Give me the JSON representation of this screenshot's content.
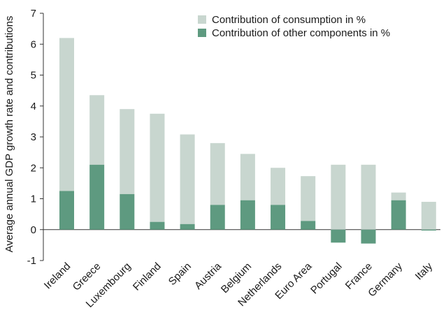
{
  "chart_data": {
    "type": "bar",
    "stacked": true,
    "title": "",
    "xlabel": "",
    "ylabel": "Average annual GDP growth rate and contributions",
    "ylim": [
      -1,
      7
    ],
    "yticks": [
      -1,
      0,
      1,
      2,
      3,
      4,
      5,
      6,
      7
    ],
    "grid": false,
    "legend_position": "top-right",
    "categories": [
      "Ireland",
      "Greece",
      "Luxembourg",
      "Finland",
      "Spain",
      "Austria",
      "Belgium",
      "Netherlands",
      "Euro Area",
      "Portugal",
      "France",
      "Germany",
      "Italy"
    ],
    "series": [
      {
        "name": "Contribution of consumption in %",
        "color": "#c8d6cf",
        "values": [
          4.95,
          2.25,
          2.75,
          3.5,
          2.9,
          2.0,
          1.5,
          1.2,
          1.45,
          2.1,
          2.1,
          0.25,
          0.9
        ]
      },
      {
        "name": "Contribution of other components in %",
        "color": "#5e9a80",
        "values": [
          1.25,
          2.1,
          1.15,
          0.25,
          0.18,
          0.8,
          0.95,
          0.8,
          0.28,
          -0.42,
          -0.45,
          0.95,
          -0.03
        ]
      }
    ]
  }
}
